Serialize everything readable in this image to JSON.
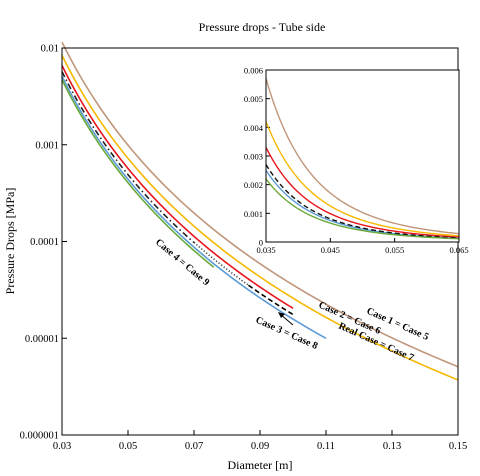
{
  "chart_data": [
    {
      "type": "line",
      "title": "Pressure drops - Tube side",
      "xlabel": "Diameter [m]",
      "ylabel": "Pressure Drops [MPa]",
      "xlim": [
        0.03,
        0.15
      ],
      "ylim": [
        1e-06,
        0.01
      ],
      "yscale": "log",
      "grid": false,
      "x_ticks": [
        0.03,
        0.05,
        0.07,
        0.09,
        0.11,
        0.13,
        0.15
      ],
      "x_tick_labels": [
        "0.03",
        "0.05",
        "0.07",
        "0.09",
        "0.11",
        "0.13",
        "0.15"
      ],
      "y_ticks": [
        1e-06,
        1e-05,
        0.0001,
        0.001,
        0.01
      ],
      "y_tick_labels": [
        "0.000001",
        "0.00001",
        "0.0001",
        "0.001",
        "0.01"
      ],
      "exponent": -4.8,
      "series": [
        {
          "key": "c1",
          "color": "#c0967a",
          "dash": "",
          "x": [
            0.03,
            0.15
          ],
          "y": [
            0.0115,
            5.1e-06
          ]
        },
        {
          "key": "c2",
          "color": "#f5b800",
          "dash": "",
          "x": [
            0.03,
            0.15
          ],
          "y": [
            0.0084,
            3.7e-06
          ]
        },
        {
          "key": "c3",
          "color": "#e8141c",
          "dash": "",
          "x": [
            0.03,
            0.1
          ],
          "y": [
            0.0066,
            2.01e-05
          ]
        },
        {
          "key": "c4",
          "color": "#222222",
          "dash": "6,3,1.5,3",
          "x": [
            0.03,
            0.07
          ],
          "y": [
            0.0057,
            9.78e-05
          ]
        },
        {
          "key": "c4b",
          "color": "#444444",
          "dash": "1.2,2",
          "x": [
            0.07,
            0.0865
          ],
          "y": [
            9.78e-05,
            3.53e-05
          ]
        },
        {
          "key": "c5",
          "color": "#000000",
          "dash": "5,3",
          "x": [
            0.0865,
            0.1
          ],
          "y": [
            3.53e-05,
            1.7e-05
          ]
        },
        {
          "key": "c6",
          "color": "#5b9bd5",
          "dash": "",
          "x": [
            0.03,
            0.11
          ],
          "y": [
            0.0051,
            1.12e-05
          ]
        },
        {
          "key": "c7",
          "color": "#6aaa3a",
          "dash": "",
          "x": [
            0.03,
            0.076
          ],
          "y": [
            0.0047,
            5.38e-05
          ]
        }
      ],
      "annotations": [
        {
          "key": "a1",
          "text": "Case 1 = Case 5"
        },
        {
          "key": "a2",
          "text": "Case 2 = Case 6"
        },
        {
          "key": "a3",
          "text": "Real Case = Case 7"
        },
        {
          "key": "a4",
          "text": "Case 3 = Case 8"
        },
        {
          "key": "a5",
          "text": "Case 4 = Case 9"
        }
      ]
    },
    {
      "type": "line",
      "title": "",
      "xlim": [
        0.035,
        0.065
      ],
      "ylim": [
        0,
        0.006
      ],
      "yscale": "linear",
      "x_ticks": [
        0.035,
        0.045,
        0.055,
        0.065
      ],
      "x_tick_labels": [
        "0.035",
        "0.045",
        "0.055",
        "0.065"
      ],
      "y_ticks": [
        0,
        0.001,
        0.002,
        0.003,
        0.004,
        0.005,
        0.006
      ],
      "y_tick_labels": [
        "0",
        "0.001",
        "0.002",
        "0.003",
        "0.004",
        "0.005",
        "0.006"
      ],
      "exponent": -4.8,
      "series": [
        {
          "key": "i1",
          "color": "#c0967a",
          "dash": "",
          "x": [
            0.035,
            0.065
          ],
          "y": [
            0.0057,
            0.00026
          ]
        },
        {
          "key": "i2",
          "color": "#f5b800",
          "dash": "",
          "x": [
            0.035,
            0.065
          ],
          "y": [
            0.0042,
            0.00019
          ]
        },
        {
          "key": "i3",
          "color": "#e8141c",
          "dash": "",
          "x": [
            0.035,
            0.065
          ],
          "y": [
            0.0033,
            0.00015
          ]
        },
        {
          "key": "i6",
          "color": "#5b9bd5",
          "dash": "",
          "x": [
            0.035,
            0.065
          ],
          "y": [
            0.0025,
            0.000114
          ]
        },
        {
          "key": "i4",
          "color": "#111111",
          "dash": "5,3",
          "x": [
            0.035,
            0.065
          ],
          "y": [
            0.0027,
            0.000123
          ]
        },
        {
          "key": "i7",
          "color": "#6aaa3a",
          "dash": "",
          "x": [
            0.035,
            0.065
          ],
          "y": [
            0.0022,
            0.0001
          ]
        }
      ]
    }
  ]
}
